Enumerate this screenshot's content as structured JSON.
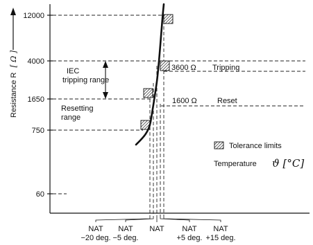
{
  "axis": {
    "ylabel_prefix": "Resistance R",
    "ylabel_unit": "[ Ω ]",
    "y_ticks": [
      "12000",
      "4000",
      "1650",
      "750",
      "60"
    ]
  },
  "annotations": {
    "iec_line1": "IEC",
    "iec_line2": "tripping range",
    "reset_line1": "Resetting",
    "reset_line2": "range",
    "tripping_value": "3600 Ω",
    "tripping_label": "Tripping",
    "reset_value": "1600 Ω",
    "reset_label": "Reset"
  },
  "legend": {
    "tolerance": "Tolerance limits",
    "temperature": "Temperature",
    "temperature_symbol": "ϑ [°C]"
  },
  "x_groups": [
    {
      "top": "NAT",
      "bottom": "−20 deg."
    },
    {
      "top": "NAT",
      "bottom": "−5 deg."
    },
    {
      "top": "NAT",
      "bottom": ""
    },
    {
      "top": "NAT",
      "bottom": "+5 deg."
    },
    {
      "top": "NAT",
      "bottom": "+15 deg."
    }
  ]
}
